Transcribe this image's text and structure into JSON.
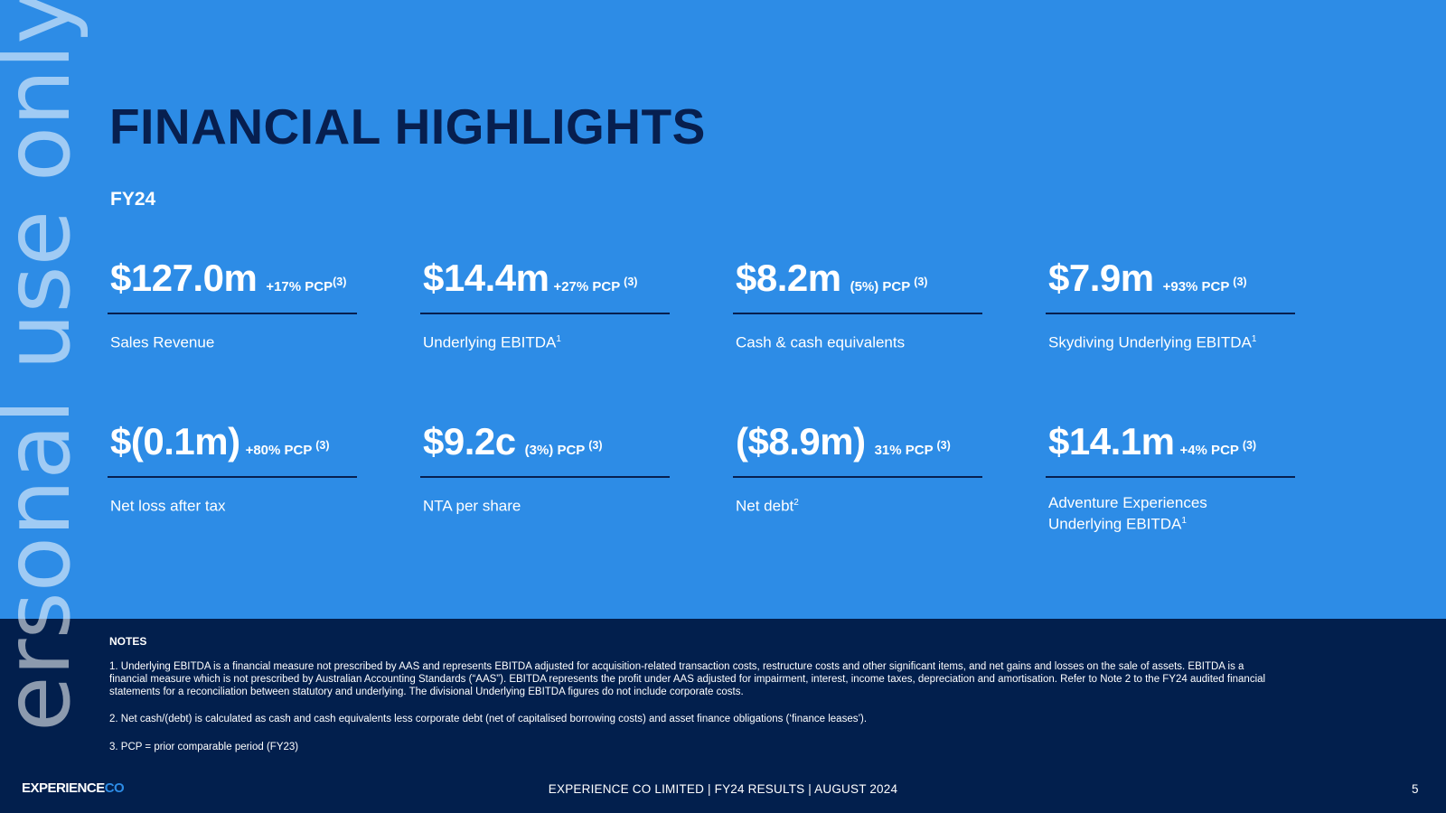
{
  "watermark": "ersonal use only",
  "title": "FINANCIAL HIGHLIGHTS",
  "period": "FY24",
  "metrics": [
    {
      "value": "$127.0m",
      "change": "+17% PCP",
      "change_ref": "(3)",
      "label": "Sales Revenue",
      "label_sup": ""
    },
    {
      "value": "$14.4m",
      "change": "+27% PCP",
      "change_ref": "(3)",
      "label": "Underlying EBITDA",
      "label_sup": "1"
    },
    {
      "value": "$8.2m",
      "change": "(5%) PCP",
      "change_ref": "(3)",
      "label": "Cash & cash equivalents",
      "label_sup": ""
    },
    {
      "value": "$7.9m",
      "change": "+93% PCP",
      "change_ref": "(3)",
      "label": "Skydiving Underlying EBITDA",
      "label_sup": "1"
    },
    {
      "value": "$(0.1m)",
      "change": "+80% PCP",
      "change_ref": "(3)",
      "label": "Net loss after tax",
      "label_sup": ""
    },
    {
      "value": "$9.2c",
      "change": "(3%) PCP",
      "change_ref": "(3)",
      "label": "NTA per share",
      "label_sup": ""
    },
    {
      "value": "($8.9m)",
      "change": "31% PCP",
      "change_ref": "(3)",
      "label": "Net debt",
      "label_sup": "2"
    },
    {
      "value": "$14.1m",
      "change": "+4% PCP",
      "change_ref": "(3)",
      "label": "Adventure Experiences Underlying EBITDA",
      "label_sup": "1"
    }
  ],
  "notes": {
    "heading": "NOTES",
    "items": [
      "1. Underlying EBITDA is a financial measure not prescribed by AAS and represents EBITDA adjusted for acquisition-related transaction costs, restructure costs and other significant items, and net gains and losses on the sale of assets. EBITDA is a financial measure which is not prescribed by Australian Accounting Standards (“AAS”).  EBITDA represents the profit under AAS adjusted for impairment, interest, income taxes, depreciation and amortisation. Refer to Note 2 to the FY24 audited financial statements for a reconciliation between statutory and underlying. The divisional Underlying EBITDA figures do not include corporate costs.",
      "2. Net cash/(debt) is calculated as cash and cash equivalents less corporate debt (net of capitalised borrowing costs) and asset finance obligations (‘finance leases’).",
      "3. PCP = prior comparable period (FY23)"
    ]
  },
  "logo": {
    "part1": "EXPERIENCE",
    "part2": "CO"
  },
  "footer": "EXPERIENCE CO LIMITED  |  FY24 RESULTS |  AUGUST 2024",
  "page_number": "5"
}
